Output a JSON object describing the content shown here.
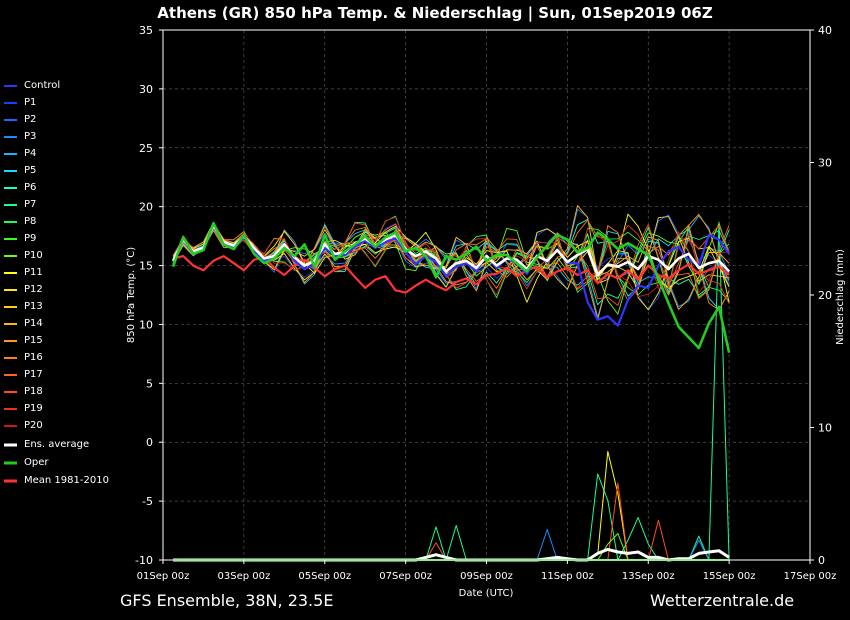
{
  "chart_data": {
    "type": "line",
    "title": "Athens  (GR)  850 hPa Temp. & Niederschlag | Sun, 01Sep2019 06Z",
    "xlabel": "Date (UTC)",
    "ylabel": "850 hPa Temp. (°C)",
    "y2label": "Niederschlag (mm)",
    "footer_left": "GFS Ensemble, 38N, 23.5E",
    "footer_right": "Wetterzentrale.de",
    "ylim": [
      -10,
      35
    ],
    "y2lim": [
      0,
      40
    ],
    "yticks": [
      "35",
      "30",
      "25",
      "20",
      "15",
      "10",
      "5",
      "0",
      "-5",
      "-10"
    ],
    "y2ticks": [
      "40",
      "30",
      "20",
      "10",
      "0"
    ],
    "x_tick_labels": [
      "01Sep 00z",
      "03Sep 00z",
      "05Sep 00z",
      "07Sep 00z",
      "09Sep 00z",
      "11Sep 00z",
      "13Sep 00z",
      "15Sep 00z",
      "17Sep 00z"
    ],
    "x_hours_step": 6,
    "x_start_offset_hours": 6,
    "grid": true,
    "legend_position": "left",
    "legend": [
      {
        "name": "Control",
        "color": "#3333ff"
      },
      {
        "name": "P1",
        "color": "#1a3fff"
      },
      {
        "name": "P2",
        "color": "#1a66ff"
      },
      {
        "name": "P3",
        "color": "#1a8cff"
      },
      {
        "name": "P4",
        "color": "#1ab3ff"
      },
      {
        "name": "P5",
        "color": "#1ad9ff"
      },
      {
        "name": "P6",
        "color": "#1affc6"
      },
      {
        "name": "P7",
        "color": "#1aff8c"
      },
      {
        "name": "P8",
        "color": "#1aff53"
      },
      {
        "name": "P9",
        "color": "#33ff1a"
      },
      {
        "name": "P10",
        "color": "#66ff1a"
      },
      {
        "name": "P11",
        "color": "#ffff1a"
      },
      {
        "name": "P12",
        "color": "#ffe61a"
      },
      {
        "name": "P13",
        "color": "#ffcc1a"
      },
      {
        "name": "P14",
        "color": "#ffb31a"
      },
      {
        "name": "P15",
        "color": "#ff991a"
      },
      {
        "name": "P16",
        "color": "#ff801a"
      },
      {
        "name": "P17",
        "color": "#ff661a"
      },
      {
        "name": "P18",
        "color": "#ff4d1a"
      },
      {
        "name": "P19",
        "color": "#e6331a"
      },
      {
        "name": "P20",
        "color": "#cc1a1a"
      },
      {
        "name": "Ens. average",
        "color": "#ffffff"
      },
      {
        "name": "Oper",
        "color": "#22cc22"
      },
      {
        "name": "Mean 1981-2010",
        "color": "#ff3333"
      }
    ],
    "series": {
      "ens_average": [
        15.4,
        17.2,
        16.2,
        16.5,
        18.4,
        17.0,
        16.7,
        17.5,
        16.5,
        15.6,
        15.8,
        16.8,
        15.7,
        15.0,
        15.4,
        16.8,
        16.0,
        16.1,
        16.9,
        17.3,
        16.7,
        17.2,
        17.6,
        16.4,
        15.8,
        16.2,
        15.6,
        14.5,
        15.2,
        15.4,
        14.8,
        15.8,
        15.0,
        15.6,
        15.5,
        14.7,
        15.8,
        15.4,
        16.3,
        15.3,
        15.9,
        16.4,
        14.2,
        15.1,
        14.9,
        15.3,
        14.7,
        15.8,
        15.5,
        14.7,
        15.6,
        16.0,
        14.8,
        15.2,
        15.4,
        14.5
      ],
      "oper": [
        14.9,
        17.4,
        16.0,
        16.3,
        18.6,
        16.8,
        16.4,
        17.6,
        16.0,
        15.2,
        15.6,
        16.5,
        15.8,
        16.8,
        14.9,
        17.6,
        15.5,
        16.2,
        16.8,
        17.5,
        16.6,
        17.4,
        17.8,
        16.2,
        16.5,
        15.8,
        14.0,
        15.8,
        15.5,
        16.0,
        16.6,
        15.4,
        15.9,
        15.9,
        15.2,
        14.5,
        15.7,
        16.7,
        17.6,
        17.2,
        16.1,
        16.5,
        17.8,
        17.2,
        16.4,
        16.9,
        16.4,
        15.9,
        13.9,
        11.8,
        9.8,
        8.9,
        8.0,
        10.1,
        11.5,
        7.6
      ],
      "mean_1981_2010": [
        15.6,
        15.8,
        15.0,
        14.6,
        15.4,
        15.8,
        15.2,
        14.6,
        15.5,
        15.7,
        14.8,
        14.2,
        15.0,
        15.5,
        14.8,
        14.1,
        14.7,
        15.0,
        14.0,
        13.1,
        13.8,
        14.1,
        12.9,
        12.7,
        13.3,
        13.8,
        13.3,
        12.9,
        13.6,
        13.9,
        13.4,
        14.2,
        14.3,
        14.8,
        14.1,
        14.6,
        14.9,
        14.0,
        14.5,
        14.8,
        14.2,
        14.6,
        13.5,
        14.3,
        13.9,
        14.6,
        13.8,
        15.0,
        14.2,
        13.9,
        14.6,
        15.1,
        14.3,
        14.6,
        14.9,
        14.2
      ],
      "control": [
        15.2,
        17.1,
        16.0,
        16.4,
        18.3,
        16.9,
        16.5,
        17.4,
        16.2,
        15.4,
        15.6,
        16.9,
        15.4,
        14.7,
        15.1,
        16.5,
        15.8,
        15.9,
        16.6,
        17.1,
        16.5,
        17.0,
        17.3,
        16.1,
        15.1,
        15.8,
        15.3,
        14.1,
        14.9,
        15.2,
        14.5,
        15.9,
        14.8,
        15.6,
        15.2,
        14.3,
        15.9,
        15.3,
        16.4,
        15.2,
        15.2,
        11.9,
        10.4,
        10.7,
        9.9,
        12.1,
        13.3,
        13.1,
        15.0,
        16.2,
        16.6,
        15.5,
        15.0,
        17.6,
        17.2,
        16.0
      ],
      "precip_average": [
        0,
        0,
        0,
        0,
        0,
        0,
        0,
        0,
        0,
        0,
        0,
        0,
        0,
        0,
        0,
        0,
        0,
        0,
        0,
        0,
        0,
        0,
        0,
        0,
        0,
        0.2,
        0.4,
        0.2,
        0,
        0,
        0,
        0,
        0,
        0,
        0,
        0,
        0,
        0.1,
        0.2,
        0.1,
        0,
        0,
        0.5,
        0.8,
        0.6,
        0.5,
        0.6,
        0.2,
        0.2,
        0,
        0.1,
        0.1,
        0.5,
        0.6,
        0.7,
        0.2
      ],
      "precip_members": [
        {
          "color": "#1aff8c",
          "values": [
            0,
            0,
            0,
            0,
            0,
            0,
            0,
            0,
            0,
            0,
            0,
            0,
            0,
            0,
            0,
            0,
            0,
            0,
            0,
            0,
            0,
            0,
            0,
            0,
            0,
            0,
            2.5,
            0,
            2.6,
            0,
            0,
            0,
            0,
            0,
            0,
            0,
            0,
            0,
            0,
            0,
            0,
            0,
            6.5,
            4.5,
            0,
            1.5,
            3.2,
            1.2,
            0,
            0,
            0,
            0,
            1.8,
            0,
            25.5,
            0
          ]
        },
        {
          "color": "#ffff1a",
          "values": [
            0,
            0,
            0,
            0,
            0,
            0,
            0,
            0,
            0,
            0,
            0,
            0,
            0,
            0,
            0,
            0,
            0,
            0,
            0,
            0,
            0,
            0,
            0,
            0,
            0,
            0,
            0,
            0,
            0,
            0,
            0,
            0,
            0,
            0,
            0,
            0,
            0,
            0,
            0,
            0,
            0,
            0,
            0.4,
            8.2,
            5.0,
            0,
            0,
            0,
            0,
            0,
            0,
            0,
            0,
            0,
            0,
            0
          ]
        },
        {
          "color": "#ff4d1a",
          "values": [
            0,
            0,
            0,
            0,
            0,
            0,
            0,
            0,
            0,
            0,
            0,
            0,
            0,
            0,
            0,
            0,
            0,
            0,
            0,
            0,
            0,
            0,
            0,
            0,
            0,
            0,
            1.3,
            0,
            0,
            0,
            0,
            0,
            0,
            0,
            0,
            0,
            0,
            0,
            0,
            0,
            0,
            0,
            0,
            0,
            5.8,
            0,
            0,
            0,
            3.0,
            0,
            0,
            0,
            0,
            0,
            0,
            0
          ]
        },
        {
          "color": "#1a8cff",
          "values": [
            0,
            0,
            0,
            0,
            0,
            0,
            0,
            0,
            0,
            0,
            0,
            0,
            0,
            0,
            0,
            0,
            0,
            0,
            0,
            0,
            0,
            0,
            0,
            0,
            0,
            0,
            0,
            0,
            0,
            0,
            0,
            0,
            0,
            0,
            0,
            0,
            0,
            2.3,
            0,
            0,
            0,
            0,
            0,
            0,
            0,
            0,
            0,
            0,
            0,
            0,
            0,
            0,
            1.5,
            0,
            0,
            0
          ]
        },
        {
          "color": "#66ff1a",
          "values": [
            0,
            0,
            0,
            0,
            0,
            0,
            0,
            0,
            0,
            0,
            0,
            0,
            0,
            0,
            0,
            0,
            0,
            0,
            0,
            0,
            0,
            0,
            0,
            0,
            0,
            0,
            0,
            0,
            0,
            0,
            0,
            0,
            0,
            0,
            0,
            0,
            0,
            0,
            0,
            0,
            0,
            0,
            0,
            1.2,
            2.0,
            0,
            0,
            0,
            0,
            0,
            0,
            0,
            0,
            0,
            0,
            0
          ]
        }
      ]
    }
  }
}
